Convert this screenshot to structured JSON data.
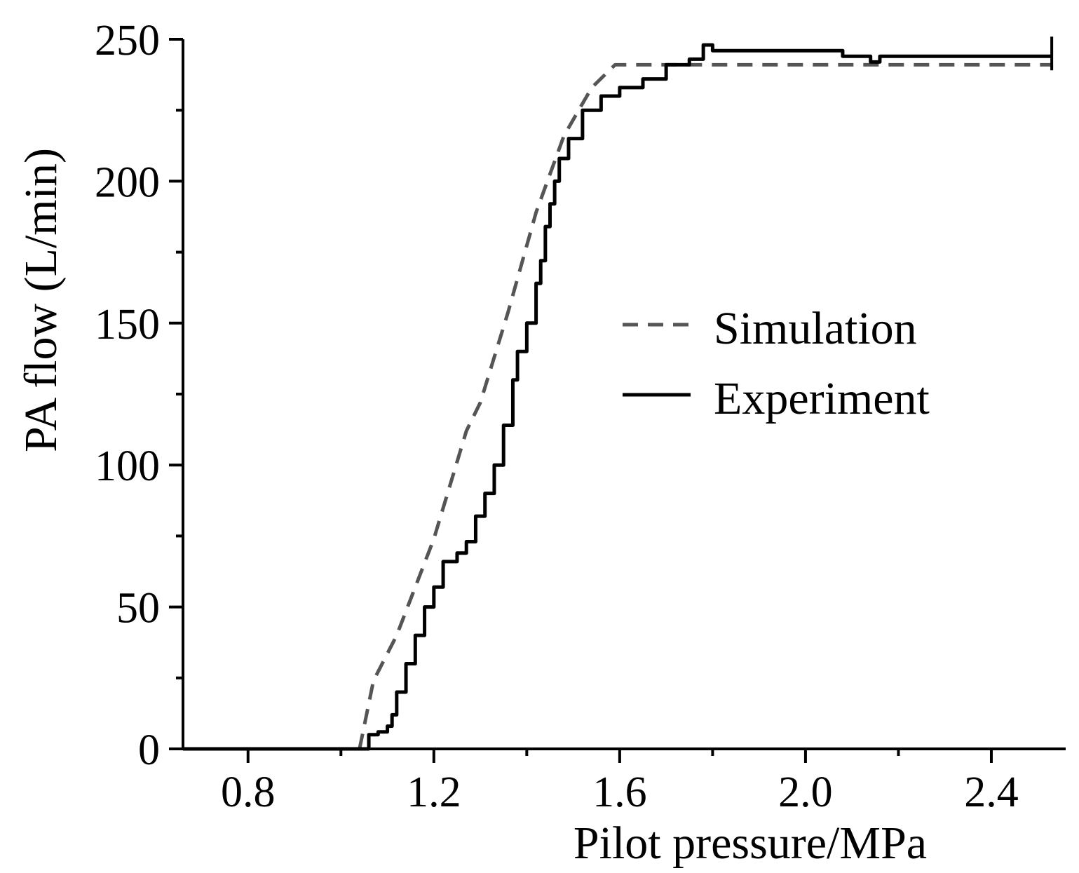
{
  "chart_data": {
    "type": "line",
    "title": "",
    "xlabel": "Pilot pressure/MPa",
    "ylabel": "PA flow (L/min)",
    "xlim": [
      0.66,
      2.56
    ],
    "ylim": [
      0,
      250
    ],
    "x_ticks": [
      0.8,
      1.2,
      1.6,
      2.0,
      2.4
    ],
    "x_tick_labels": [
      "0.8",
      "1.2",
      "1.6",
      "2.0",
      "2.4"
    ],
    "y_ticks": [
      0,
      50,
      100,
      150,
      200,
      250
    ],
    "y_tick_labels": [
      "0",
      "50",
      "100",
      "150",
      "200",
      "250"
    ],
    "grid": false,
    "legend_position": "center-right",
    "colors": {
      "simulation": "#555555",
      "experiment": "#000000",
      "axis": "#000000"
    },
    "series": [
      {
        "name": "Simulation",
        "style": "dashed",
        "x": [
          1.04,
          1.07,
          1.12,
          1.2,
          1.27,
          1.3,
          1.36,
          1.42,
          1.48,
          1.54,
          1.59,
          2.53
        ],
        "y": [
          0,
          24,
          40,
          74,
          112,
          122,
          154,
          189,
          216,
          233,
          241,
          241
        ]
      },
      {
        "name": "Experiment",
        "style": "solid",
        "x": [
          1.05,
          1.06,
          1.08,
          1.1,
          1.11,
          1.12,
          1.14,
          1.16,
          1.18,
          1.2,
          1.22,
          1.25,
          1.27,
          1.29,
          1.31,
          1.33,
          1.35,
          1.37,
          1.38,
          1.4,
          1.42,
          1.43,
          1.44,
          1.45,
          1.46,
          1.47,
          1.49,
          1.52,
          1.56,
          1.6,
          1.65,
          1.7,
          1.75,
          1.78,
          1.8,
          1.9,
          2.0,
          2.06,
          2.08,
          2.14,
          2.16,
          2.2,
          2.3,
          2.36,
          2.4,
          2.53
        ],
        "y": [
          0,
          5,
          6,
          8,
          12,
          20,
          30,
          40,
          50,
          57,
          66,
          69,
          73,
          82,
          90,
          100,
          114,
          130,
          140,
          150,
          164,
          172,
          184,
          192,
          200,
          208,
          215,
          225,
          230,
          233,
          236,
          241,
          243,
          248,
          246,
          246,
          246,
          246,
          244,
          242,
          244,
          244,
          244,
          244,
          244,
          244
        ]
      }
    ]
  }
}
